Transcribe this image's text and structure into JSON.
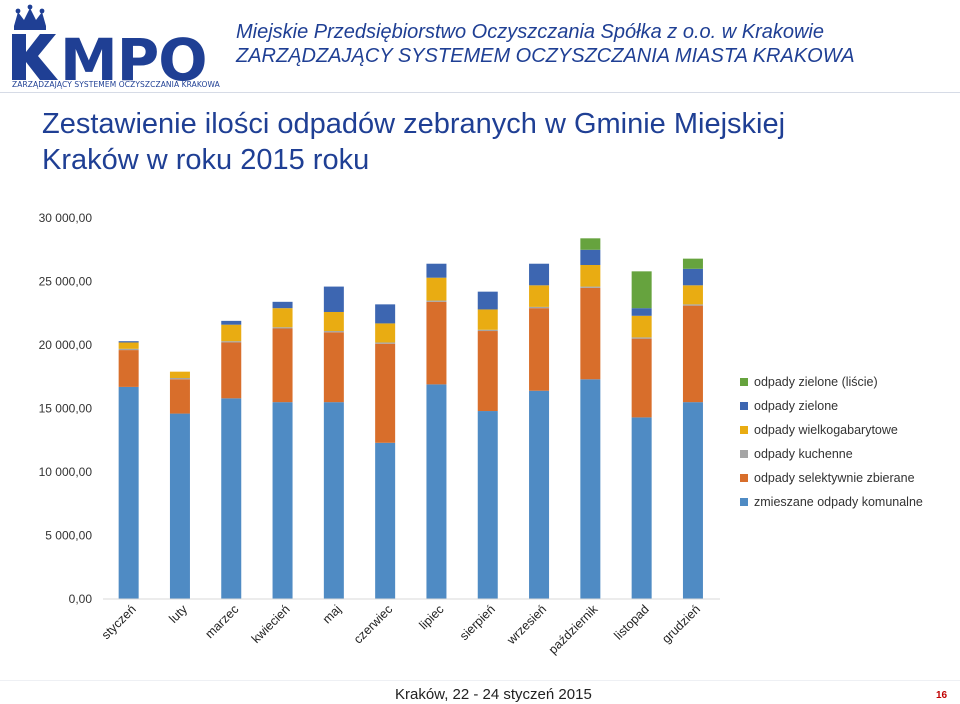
{
  "header": {
    "logo_text": "MPO",
    "logo_subtitle": "ZARZĄDZAJĄCY SYSTEMEM OCZYSZCZANIA KRAKOWA",
    "company_line1": "Miejskie Przedsiębiorstwo Oczyszczania Spółka z o.o. w Krakowie",
    "company_line2": "ZARZĄDZAJĄCY SYSTEMEM OCZYSZCZANIA MIASTA KRAKOWA"
  },
  "slide": {
    "title_line1": "Zestawienie ilości odpadów zebranych w Gminie Miejskiej",
    "title_line2": "Kraków w roku 2015 roku"
  },
  "colors": {
    "brand": "#1f3f94",
    "zmieszane": "#4f8bc4",
    "selektywnie": "#d86e2b",
    "kuchenne": "#a5a5a5",
    "wielkogabarytowe": "#e9ac12",
    "zielone": "#3d66b1",
    "zielone_liscie": "#66a33e"
  },
  "chart_data": {
    "type": "bar",
    "stacked": true,
    "categories": [
      "styczeń",
      "luty",
      "marzec",
      "kwiecień",
      "maj",
      "czerwiec",
      "lipiec",
      "sierpień",
      "wrzesień",
      "październik",
      "listopad",
      "grudzień"
    ],
    "series": [
      {
        "name": "zmieszane odpady komunalne",
        "color": "#4f8bc4",
        "values": [
          16700,
          14600,
          15800,
          15500,
          15500,
          12300,
          16900,
          14800,
          16400,
          17300,
          14300,
          15500
        ]
      },
      {
        "name": "odpady selektywnie zbierane",
        "color": "#d86e2b",
        "values": [
          2900,
          2700,
          4400,
          5800,
          5500,
          7800,
          6500,
          6300,
          6500,
          7200,
          6200,
          7600
        ]
      },
      {
        "name": "odpady kuchenne",
        "color": "#a5a5a5",
        "values": [
          100,
          100,
          100,
          100,
          100,
          100,
          100,
          100,
          100,
          100,
          100,
          100
        ]
      },
      {
        "name": "odpady wielkogabarytowe",
        "color": "#e9ac12",
        "values": [
          500,
          500,
          1300,
          1500,
          1500,
          1500,
          1800,
          1600,
          1700,
          1700,
          1700,
          1500
        ]
      },
      {
        "name": "odpady zielone",
        "color": "#3d66b1",
        "values": [
          100,
          0,
          300,
          500,
          2000,
          1500,
          1100,
          1400,
          1700,
          1200,
          600,
          1300
        ]
      },
      {
        "name": "odpady zielone (liście)",
        "color": "#66a33e",
        "values": [
          0,
          0,
          0,
          0,
          0,
          0,
          0,
          0,
          0,
          900,
          2900,
          800
        ]
      }
    ],
    "y_ticks": [
      "0,00",
      "5 000,00",
      "10 000,00",
      "15 000,00",
      "20 000,00",
      "25 000,00",
      "30 000,00"
    ],
    "ylim": [
      0,
      30000
    ],
    "grid": false,
    "legend_position": "right"
  },
  "footer": {
    "text": "Kraków, 22 - 24 styczeń 2015",
    "page_number": "16"
  }
}
